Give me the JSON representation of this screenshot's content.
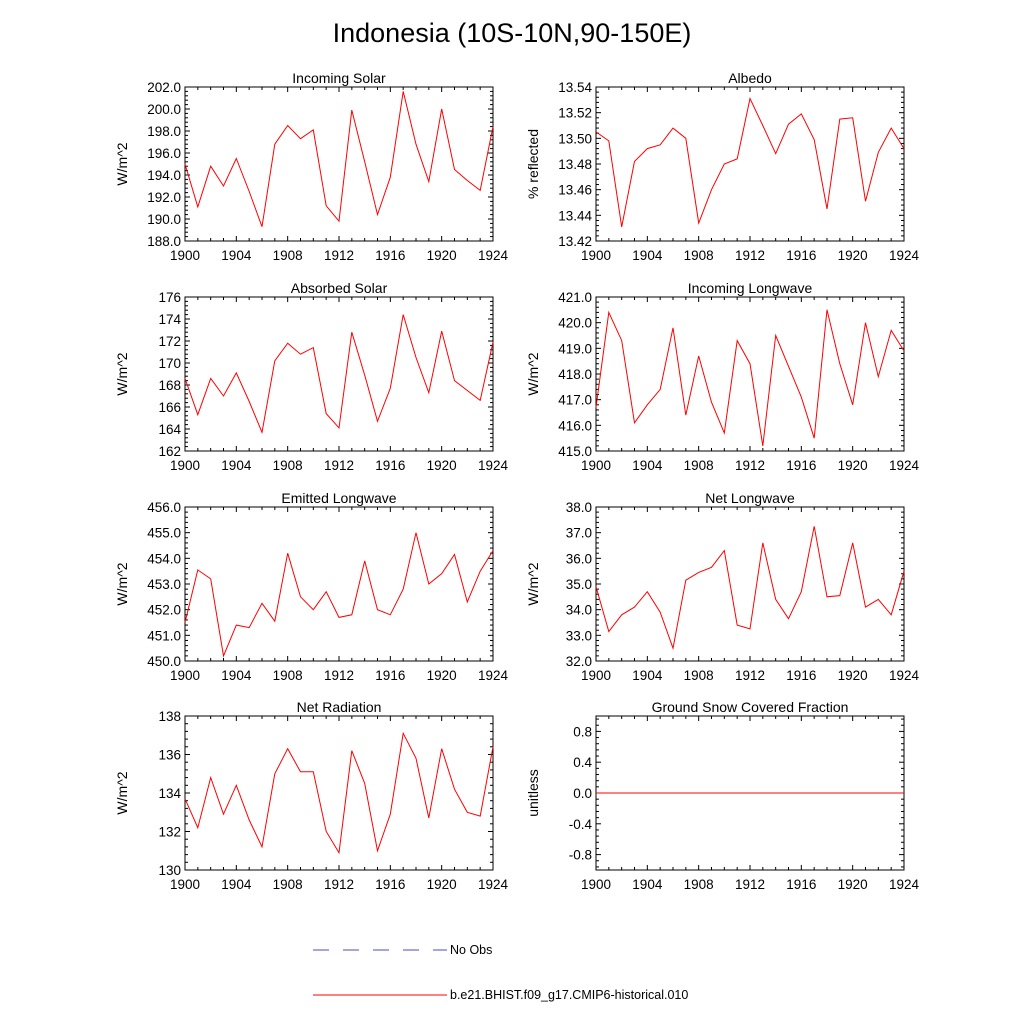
{
  "figure": {
    "title": "Indonesia (10S-10N,90-150E)"
  },
  "legend": {
    "items": [
      {
        "label": "No Obs",
        "color": "#4b4bc8",
        "style": "dashed"
      },
      {
        "label": "b.e21.BHIST.f09_g17.CMIP6-historical.010",
        "color": "#ff0000",
        "style": "solid"
      }
    ]
  },
  "chart_data": [
    {
      "type": "line",
      "title": "Incoming Solar",
      "ylabel": "W/m^2",
      "xlim": [
        1900,
        1924
      ],
      "ylim": [
        188,
        202
      ],
      "xticks": [
        1900,
        1904,
        1908,
        1912,
        1916,
        1920,
        1924
      ],
      "yticks": [
        188,
        190,
        192,
        194,
        196,
        198,
        200,
        202
      ],
      "ytick_labels": [
        "188.0",
        "190.0",
        "192.0",
        "194.0",
        "196.0",
        "198.0",
        "200.0",
        "202.0"
      ],
      "x": [
        1900,
        1901,
        1902,
        1903,
        1904,
        1905,
        1906,
        1907,
        1908,
        1909,
        1910,
        1911,
        1912,
        1913,
        1914,
        1915,
        1916,
        1917,
        1918,
        1919,
        1920,
        1921,
        1922,
        1923,
        1924
      ],
      "series": [
        {
          "color": "#ff0000",
          "values": [
            195.0,
            191.1,
            194.8,
            193.0,
            195.5,
            192.5,
            189.3,
            196.8,
            198.5,
            197.3,
            198.1,
            191.2,
            189.8,
            199.9,
            195.2,
            190.4,
            193.8,
            201.6,
            196.8,
            193.4,
            200.0,
            194.5,
            193.5,
            192.6,
            198.4
          ]
        }
      ]
    },
    {
      "type": "line",
      "title": "Albedo",
      "ylabel": "% reflected",
      "xlim": [
        1900,
        1924
      ],
      "ylim": [
        13.42,
        13.54
      ],
      "xticks": [
        1900,
        1904,
        1908,
        1912,
        1916,
        1920,
        1924
      ],
      "yticks": [
        13.42,
        13.44,
        13.46,
        13.48,
        13.5,
        13.52,
        13.54
      ],
      "ytick_labels": [
        "13.42",
        "13.44",
        "13.46",
        "13.48",
        "13.50",
        "13.52",
        "13.54"
      ],
      "x": [
        1900,
        1901,
        1902,
        1903,
        1904,
        1905,
        1906,
        1907,
        1908,
        1909,
        1910,
        1911,
        1912,
        1913,
        1914,
        1915,
        1916,
        1917,
        1918,
        1919,
        1920,
        1921,
        1922,
        1923,
        1924
      ],
      "series": [
        {
          "color": "#ff0000",
          "values": [
            13.505,
            13.498,
            13.431,
            13.482,
            13.492,
            13.495,
            13.508,
            13.5,
            13.434,
            13.46,
            13.48,
            13.484,
            13.531,
            13.51,
            13.488,
            13.511,
            13.519,
            13.499,
            13.445,
            13.515,
            13.516,
            13.451,
            13.489,
            13.508,
            13.492
          ]
        }
      ]
    },
    {
      "type": "line",
      "title": "Absorbed Solar",
      "ylabel": "W/m^2",
      "xlim": [
        1900,
        1924
      ],
      "ylim": [
        162,
        176
      ],
      "xticks": [
        1900,
        1904,
        1908,
        1912,
        1916,
        1920,
        1924
      ],
      "yticks": [
        162,
        164,
        166,
        168,
        170,
        172,
        174,
        176
      ],
      "ytick_labels": [
        "162",
        "164",
        "166",
        "168",
        "170",
        "172",
        "174",
        "176"
      ],
      "x": [
        1900,
        1901,
        1902,
        1903,
        1904,
        1905,
        1906,
        1907,
        1908,
        1909,
        1910,
        1911,
        1912,
        1913,
        1914,
        1915,
        1916,
        1917,
        1918,
        1919,
        1920,
        1921,
        1922,
        1923,
        1924
      ],
      "series": [
        {
          "color": "#ff0000",
          "values": [
            168.6,
            165.3,
            168.6,
            167.0,
            169.1,
            166.5,
            163.7,
            170.2,
            171.8,
            170.8,
            171.4,
            165.4,
            164.1,
            172.8,
            168.9,
            164.7,
            167.7,
            174.4,
            170.5,
            167.3,
            172.9,
            168.4,
            167.5,
            166.6,
            171.9
          ]
        }
      ]
    },
    {
      "type": "line",
      "title": "Incoming Longwave",
      "ylabel": "W/m^2",
      "xlim": [
        1900,
        1924
      ],
      "ylim": [
        415,
        421
      ],
      "xticks": [
        1900,
        1904,
        1908,
        1912,
        1916,
        1920,
        1924
      ],
      "yticks": [
        415,
        416,
        417,
        418,
        419,
        420,
        421
      ],
      "ytick_labels": [
        "415.0",
        "416.0",
        "417.0",
        "418.0",
        "419.0",
        "420.0",
        "421.0"
      ],
      "x": [
        1900,
        1901,
        1902,
        1903,
        1904,
        1905,
        1906,
        1907,
        1908,
        1909,
        1910,
        1911,
        1912,
        1913,
        1914,
        1915,
        1916,
        1917,
        1918,
        1919,
        1920,
        1921,
        1922,
        1923,
        1924
      ],
      "series": [
        {
          "color": "#ff0000",
          "values": [
            416.7,
            420.4,
            419.3,
            416.1,
            416.8,
            417.4,
            419.8,
            416.4,
            418.7,
            416.9,
            415.7,
            419.3,
            418.4,
            415.2,
            419.5,
            418.3,
            417.1,
            415.5,
            420.5,
            418.4,
            416.8,
            420.0,
            417.9,
            419.7,
            418.9
          ]
        }
      ]
    },
    {
      "type": "line",
      "title": "Emitted Longwave",
      "ylabel": "W/m^2",
      "xlim": [
        1900,
        1924
      ],
      "ylim": [
        450,
        456
      ],
      "xticks": [
        1900,
        1904,
        1908,
        1912,
        1916,
        1920,
        1924
      ],
      "yticks": [
        450,
        451,
        452,
        453,
        454,
        455,
        456
      ],
      "ytick_labels": [
        "450.0",
        "451.0",
        "452.0",
        "453.0",
        "454.0",
        "455.0",
        "456.0"
      ],
      "x": [
        1900,
        1901,
        1902,
        1903,
        1904,
        1905,
        1906,
        1907,
        1908,
        1909,
        1910,
        1911,
        1912,
        1913,
        1914,
        1915,
        1916,
        1917,
        1918,
        1919,
        1920,
        1921,
        1922,
        1923,
        1924
      ],
      "series": [
        {
          "color": "#ff0000",
          "values": [
            451.5,
            453.55,
            453.2,
            450.2,
            451.4,
            451.3,
            452.25,
            451.55,
            454.2,
            452.5,
            452.0,
            452.7,
            451.7,
            451.8,
            453.9,
            452.0,
            451.8,
            452.8,
            455.0,
            453.0,
            453.4,
            454.15,
            452.3,
            453.5,
            454.3
          ]
        }
      ]
    },
    {
      "type": "line",
      "title": "Net Longwave",
      "ylabel": "W/m^2",
      "xlim": [
        1900,
        1924
      ],
      "ylim": [
        32,
        38
      ],
      "xticks": [
        1900,
        1904,
        1908,
        1912,
        1916,
        1920,
        1924
      ],
      "yticks": [
        32,
        33,
        34,
        35,
        36,
        37,
        38
      ],
      "ytick_labels": [
        "32.0",
        "33.0",
        "34.0",
        "35.0",
        "36.0",
        "37.0",
        "38.0"
      ],
      "x": [
        1900,
        1901,
        1902,
        1903,
        1904,
        1905,
        1906,
        1907,
        1908,
        1909,
        1910,
        1911,
        1912,
        1913,
        1914,
        1915,
        1916,
        1917,
        1918,
        1919,
        1920,
        1921,
        1922,
        1923,
        1924
      ],
      "series": [
        {
          "color": "#ff0000",
          "values": [
            34.9,
            33.15,
            33.8,
            34.1,
            34.7,
            33.9,
            32.5,
            35.15,
            35.45,
            35.65,
            36.3,
            33.4,
            33.25,
            36.6,
            34.4,
            33.65,
            34.7,
            37.25,
            34.5,
            34.55,
            36.6,
            34.1,
            34.4,
            33.8,
            35.5
          ]
        }
      ]
    },
    {
      "type": "line",
      "title": "Net Radiation",
      "ylabel": "W/m^2",
      "xlim": [
        1900,
        1924
      ],
      "ylim": [
        130,
        138
      ],
      "xticks": [
        1900,
        1904,
        1908,
        1912,
        1916,
        1920,
        1924
      ],
      "yticks": [
        130,
        132,
        134,
        136,
        138
      ],
      "ytick_labels": [
        "130",
        "132",
        "134",
        "136",
        "138"
      ],
      "x": [
        1900,
        1901,
        1902,
        1903,
        1904,
        1905,
        1906,
        1907,
        1908,
        1909,
        1910,
        1911,
        1912,
        1913,
        1914,
        1915,
        1916,
        1917,
        1918,
        1919,
        1920,
        1921,
        1922,
        1923,
        1924
      ],
      "series": [
        {
          "color": "#ff0000",
          "values": [
            133.7,
            132.2,
            134.8,
            132.9,
            134.4,
            132.6,
            131.2,
            135.0,
            136.3,
            135.1,
            135.1,
            132.0,
            130.9,
            136.2,
            134.5,
            131.0,
            132.9,
            137.1,
            135.8,
            132.7,
            136.3,
            134.2,
            133.0,
            132.8,
            136.4
          ]
        }
      ]
    },
    {
      "type": "line",
      "title": "Ground Snow Covered Fraction",
      "ylabel": "unitless",
      "xlim": [
        1900,
        1924
      ],
      "ylim": [
        -1.0,
        1.0
      ],
      "xticks": [
        1900,
        1904,
        1908,
        1912,
        1916,
        1920,
        1924
      ],
      "yticks": [
        -0.8,
        -0.4,
        0.0,
        0.4,
        0.8
      ],
      "ytick_labels": [
        "-0.8",
        "-0.4",
        "0.0",
        "0.4",
        "0.8"
      ],
      "x": [
        1900,
        1901,
        1902,
        1903,
        1904,
        1905,
        1906,
        1907,
        1908,
        1909,
        1910,
        1911,
        1912,
        1913,
        1914,
        1915,
        1916,
        1917,
        1918,
        1919,
        1920,
        1921,
        1922,
        1923,
        1924
      ],
      "series": [
        {
          "color": "#ff0000",
          "values": [
            0,
            0,
            0,
            0,
            0,
            0,
            0,
            0,
            0,
            0,
            0,
            0,
            0,
            0,
            0,
            0,
            0,
            0,
            0,
            0,
            0,
            0,
            0,
            0,
            0
          ]
        }
      ]
    }
  ]
}
